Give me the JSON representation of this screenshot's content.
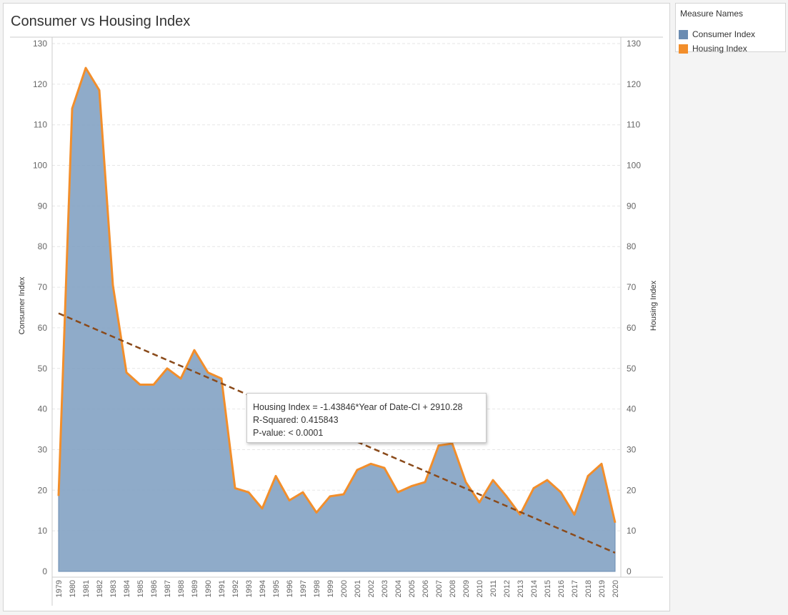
{
  "colors": {
    "consumer_fill": "#7f9fc1",
    "consumer_line": "#6b8cb2",
    "housing_line": "#f28e2b",
    "trend_line": "#8a4a1a",
    "grid": "#e6e6e6",
    "axis": "#cccccc"
  },
  "legend": {
    "title": "Measure Names",
    "items": [
      {
        "label": "Consumer Index",
        "color": "#6b8cb2"
      },
      {
        "label": "Housing Index",
        "color": "#f28e2b"
      }
    ]
  },
  "tooltip": {
    "line1": "Housing Index = -1.43846*Year of Date-CI + 2910.28",
    "line2": "R-Squared: 0.415843",
    "line3": "P-value: < 0.0001"
  },
  "chart_data": {
    "type": "area",
    "title": "Consumer vs Housing Index",
    "ylabel": "Consumer Index",
    "y2label": "Housing Index",
    "xlabel": "",
    "ylim": [
      0,
      130
    ],
    "y2lim": [
      0,
      130
    ],
    "yticks": [
      0,
      10,
      20,
      30,
      40,
      50,
      60,
      70,
      80,
      90,
      100,
      110,
      120,
      130
    ],
    "grid": true,
    "legend": "right",
    "categories": [
      "1979",
      "1980",
      "1981",
      "1982",
      "1983",
      "1984",
      "1985",
      "1986",
      "1987",
      "1988",
      "1989",
      "1990",
      "1991",
      "1992",
      "1993",
      "1994",
      "1995",
      "1996",
      "1997",
      "1998",
      "1999",
      "2000",
      "2001",
      "2002",
      "2003",
      "2004",
      "2005",
      "2006",
      "2007",
      "2008",
      "2009",
      "2010",
      "2011",
      "2012",
      "2013",
      "2014",
      "2015",
      "2016",
      "2017",
      "2018",
      "2019",
      "2020"
    ],
    "series": [
      {
        "name": "Consumer Index",
        "type": "area",
        "values": [
          18.6,
          114,
          124,
          118.5,
          70.5,
          49,
          46,
          46,
          50,
          47.5,
          54.5,
          49,
          47.5,
          20.5,
          19.5,
          15.5,
          23.5,
          17.5,
          19.5,
          14.5,
          18.5,
          19,
          25,
          26.5,
          25.5,
          19.5,
          21,
          22,
          31,
          31.5,
          22,
          17,
          22.5,
          18.5,
          14,
          20.5,
          22.5,
          19.5,
          14,
          23.5,
          26.5,
          12
        ]
      },
      {
        "name": "Housing Index",
        "type": "line",
        "values": [
          18.6,
          114,
          124,
          118.5,
          70.5,
          49,
          46,
          46,
          50,
          47.5,
          54.5,
          49,
          47.5,
          20.5,
          19.5,
          15.5,
          23.5,
          17.5,
          19.5,
          14.5,
          18.5,
          19,
          25,
          26.5,
          25.5,
          19.5,
          21,
          22,
          31,
          31.5,
          22,
          17,
          22.5,
          18.5,
          14,
          20.5,
          22.5,
          19.5,
          14,
          23.5,
          26.5,
          12
        ]
      }
    ],
    "trend": {
      "slope": -1.43846,
      "intercept": 2910.28
    }
  }
}
